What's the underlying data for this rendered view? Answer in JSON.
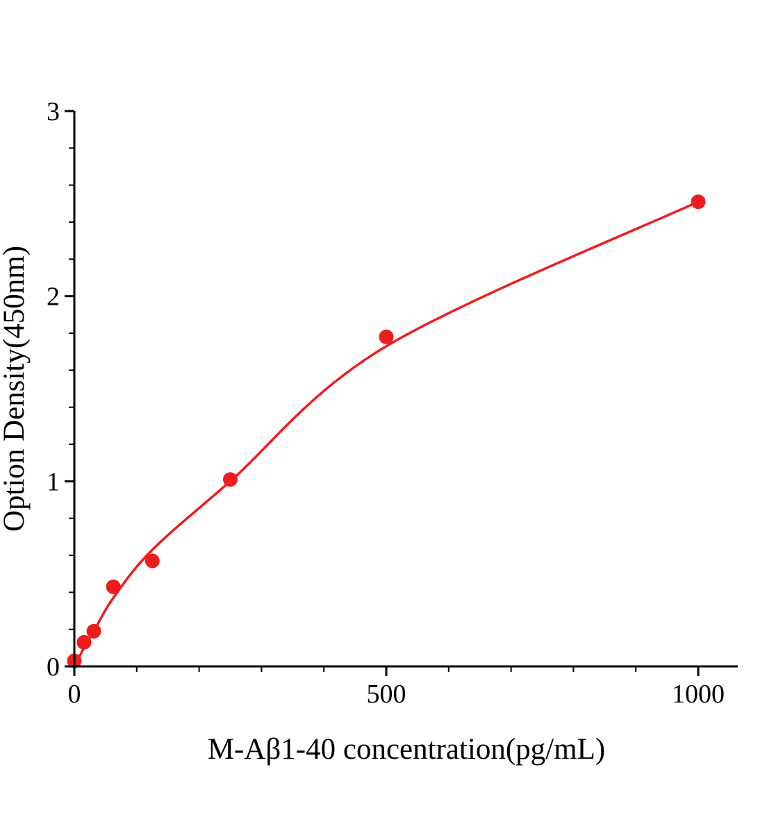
{
  "chart_data": {
    "type": "scatter",
    "title": "",
    "xlabel": "M-Aβ1-40 concentration(pg/mL)",
    "ylabel": "Option Density(450nm)",
    "xlim": [
      0,
      1060
    ],
    "ylim": [
      0,
      3
    ],
    "x_ticks": [
      0,
      500,
      1000
    ],
    "x_minor_ticks": [
      100,
      200,
      300,
      400,
      600,
      700,
      800,
      900
    ],
    "y_ticks": [
      0,
      1,
      2,
      3
    ],
    "y_minor_ticks": [
      0.2,
      0.4,
      0.6,
      0.8,
      1.2,
      1.4,
      1.6,
      1.8,
      2.2,
      2.4,
      2.6,
      2.8
    ],
    "grid": false,
    "legend_position": "none",
    "marker_color": "#ee1c1c",
    "line_color": "#ee1c1c",
    "axis_color": "#000000",
    "points": [
      [
        0,
        0.03
      ],
      [
        15.6,
        0.13
      ],
      [
        31.25,
        0.19
      ],
      [
        62.5,
        0.43
      ],
      [
        125,
        0.57
      ],
      [
        250,
        1.01
      ],
      [
        500,
        1.78
      ],
      [
        1000,
        2.51
      ]
    ],
    "curve_points": [
      [
        0,
        0.0
      ],
      [
        15.6,
        0.1
      ],
      [
        31.25,
        0.19
      ],
      [
        62.5,
        0.37
      ],
      [
        125,
        0.63
      ],
      [
        250,
        1.0
      ],
      [
        500,
        1.73
      ],
      [
        1000,
        2.51
      ]
    ]
  }
}
